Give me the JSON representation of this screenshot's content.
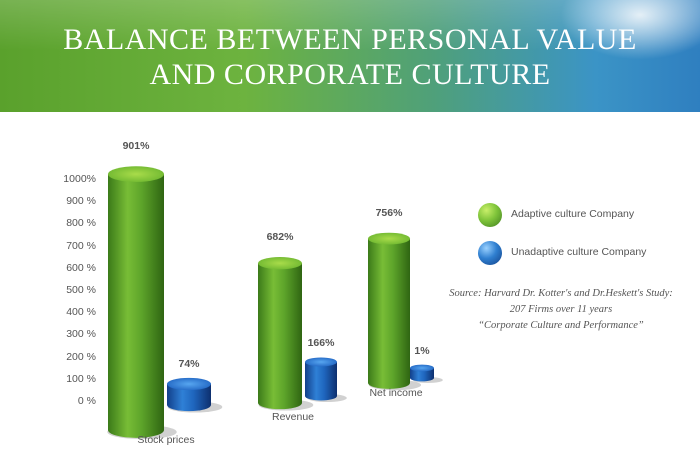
{
  "title_lines": [
    "BALANCE BETWEEN PERSONAL VALUE",
    "AND CORPORATE CULTURE"
  ],
  "chart_data": {
    "type": "bar",
    "categories": [
      "Stock prices",
      "Revenue",
      "Net income"
    ],
    "series": [
      {
        "name": "Adaptive culture Company",
        "values": [
          901,
          682,
          756
        ],
        "labels": [
          "901%",
          "682%",
          "756%"
        ],
        "color": "#6db33f"
      },
      {
        "name": "Unadaptive culture Company",
        "values": [
          74,
          166,
          1
        ],
        "labels": [
          "74%",
          "166%",
          "1%"
        ],
        "color": "#2f7fd0"
      }
    ],
    "yticks": [
      "0 %",
      "100 %",
      "200 %",
      "300 %",
      "400 %",
      "500 %",
      "600 %",
      "700 %",
      "800 %",
      "900 %",
      "1000%"
    ],
    "ylim": [
      0,
      1000
    ],
    "legend_position": "right"
  },
  "source_lines": [
    "Source: Harvard Dr. Kotter's and Dr.Heskett's Study:",
    "207 Firms over 11 years",
    "“Corporate Culture and Performance”"
  ]
}
